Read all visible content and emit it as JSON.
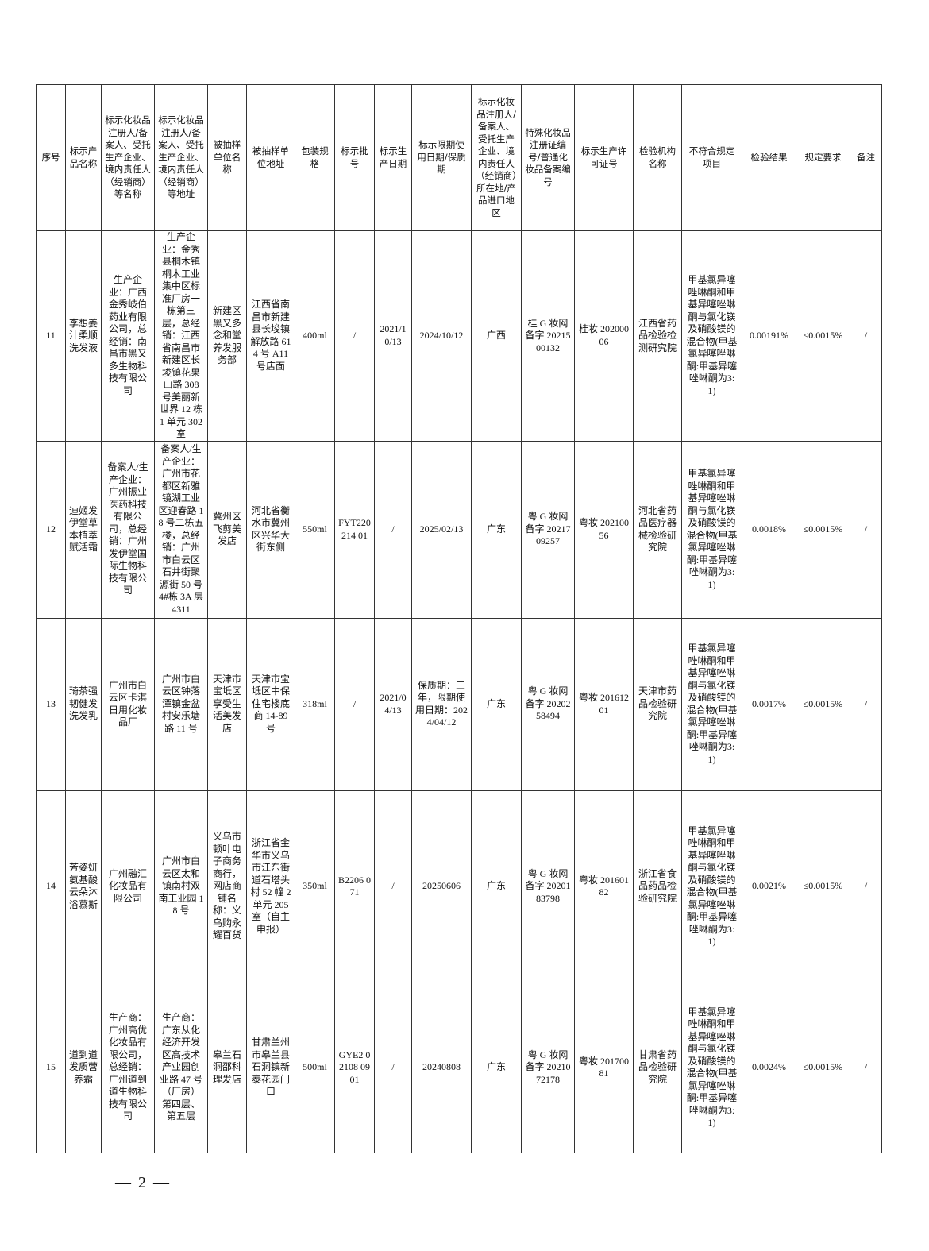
{
  "headers": [
    "序号",
    "标示产品名称",
    "标示化妆品注册人/备案人、受托生产企业、境内责任人（经销商）等名称",
    "标示化妆品注册人/备案人、受托生产企业、境内责任人（经销商）等地址",
    "被抽样单位名称",
    "被抽样单位地址",
    "包装规格",
    "标示批号",
    "标示生产日期",
    "标示限期使用日期/保质期",
    "标示化妆品注册人/备案人、受托生产企业、境内责任人（经销商）所在地/产品进口地区",
    "特殊化妆品注册证编号/普通化妆品备案编号",
    "标示生产许可证号",
    "检验机构名称",
    "不符合规定项目",
    "检验结果",
    "规定要求",
    "备注"
  ],
  "rows": [
    [
      "11",
      "李想姜汁柔顺洗发液",
      "生产企业：广西金秀岐伯药业有限公司，总经销：南昌市黑又多生物科技有限公司",
      "生产企业：金秀县桐木镇桐木工业集中区标准厂房一栋第三层，总经销：江西省南昌市新建区长埈镇花果山路 308 号美丽新世界 12 栋 1 单元 302 室",
      "新建区黑又多念和堂养发服务部",
      "江西省南昌市新建县长埈镇解放路 614 号 A11 号店面",
      "400ml",
      "/",
      "2021/10/13",
      "2024/10/12",
      "广西",
      "桂 G 妆网备字 2021500132",
      "桂妆 20200006",
      "江西省药品检验检测研究院",
      "甲基氯异噻唑啉酮和甲基异噻唑啉酮与氯化镁及硝酸镁的混合物(甲基氯异噻唑啉酮:甲基异噻唑啉酮为3:1)",
      "0.00191%",
      "≤0.0015%",
      "/"
    ],
    [
      "12",
      "迪姬发伊堂草本植萃赋活霜",
      "备案人/生产企业：广州振业医药科技有限公司，总经销：广州发伊堂国际生物科技有限公司",
      "备案人/生产企业：广州市花都区新雅镜湖工业区迎春路 18 号二栋五楼，总经销：广州市白云区石井街聚源街 50 号 4#栋 3A 层 4311",
      "冀州区飞剪美发店",
      "河北省衡水市冀州区兴华大街东侧",
      "550ml",
      "FYT220214 01",
      "/",
      "2025/02/13",
      "广东",
      "粤 G 妆网备字 2021709257",
      "粤妆 20210056",
      "河北省药品医疗器械检验研究院",
      "甲基氯异噻唑啉酮和甲基异噻唑啉酮与氯化镁及硝酸镁的混合物(甲基氯异噻唑啉酮:甲基异噻唑啉酮为3:1)",
      "0.0018%",
      "≤0.0015%",
      "/"
    ],
    [
      "13",
      "琦茶强韧健发洗发乳",
      "广州市白云区卡淇日用化妆品厂",
      "广州市白云区钟落潭镇金盆村安乐塘路 11 号",
      "天津市宝坻区享受生活美发店",
      "天津市宝坻区中保住宅楼底商 14-89 号",
      "318ml",
      "/",
      "2021/04/13",
      "保质期：三年，限期使用日期：2024/04/12",
      "广东",
      "粤 G 妆网备字 2020258494",
      "粤妆 20161201",
      "天津市药品检验研究院",
      "甲基氯异噻唑啉酮和甲基异噻唑啉酮与氯化镁及硝酸镁的混合物(甲基氯异噻唑啉酮:甲基异噻唑啉酮为3:1)",
      "0.0017%",
      "≤0.0015%",
      "/"
    ],
    [
      "14",
      "芳姿妍氨基酸云朵沐浴慕斯",
      "广州融汇化妆品有限公司",
      "广州市白云区太和镇南村双南工业园 18 号",
      "义乌市顿叶电子商务商行，网店商铺名称：义乌购永耀百货",
      "浙江省金华市义乌市江东街道石塔头村 52 幢 2 单元 205 室（自主申报）",
      "350ml",
      "B2206 071",
      "/",
      "20250606",
      "广东",
      "粤 G 妆网备字 2020183798",
      "粤妆 20160182",
      "浙江省食品药品检验研究院",
      "甲基氯异噻唑啉酮和甲基异噻唑啉酮与氯化镁及硝酸镁的混合物(甲基氯异噻唑啉酮:甲基异噻唑啉酮为3:1)",
      "0.0021%",
      "≤0.0015%",
      "/"
    ],
    [
      "15",
      "道到道发质营养霜",
      "生产商：广州高优化妆品有限公司，总经销：广州道到道生物科技有限公司",
      "生产商：广东从化经济开发区高技术产业园创业路 47 号（厂房）第四层、第五层",
      "皋兰石洞邵科理发店",
      "甘肃兰州市皋兰县石洞镇新泰花园门口",
      "500ml",
      "GYE2 02108 0901",
      "/",
      "20240808",
      "广东",
      "粤 G 妆网备字 2021072178",
      "粤妆 20170081",
      "甘肃省药品检验研究院",
      "甲基氯异噻唑啉酮和甲基异噻唑啉酮与氯化镁及硝酸镁的混合物(甲基氯异噻唑啉酮:甲基异噻唑啉酮为3:1)",
      "0.0024%",
      "≤0.0015%",
      "/"
    ]
  ],
  "footer": {
    "page_number": "— 2 —"
  }
}
